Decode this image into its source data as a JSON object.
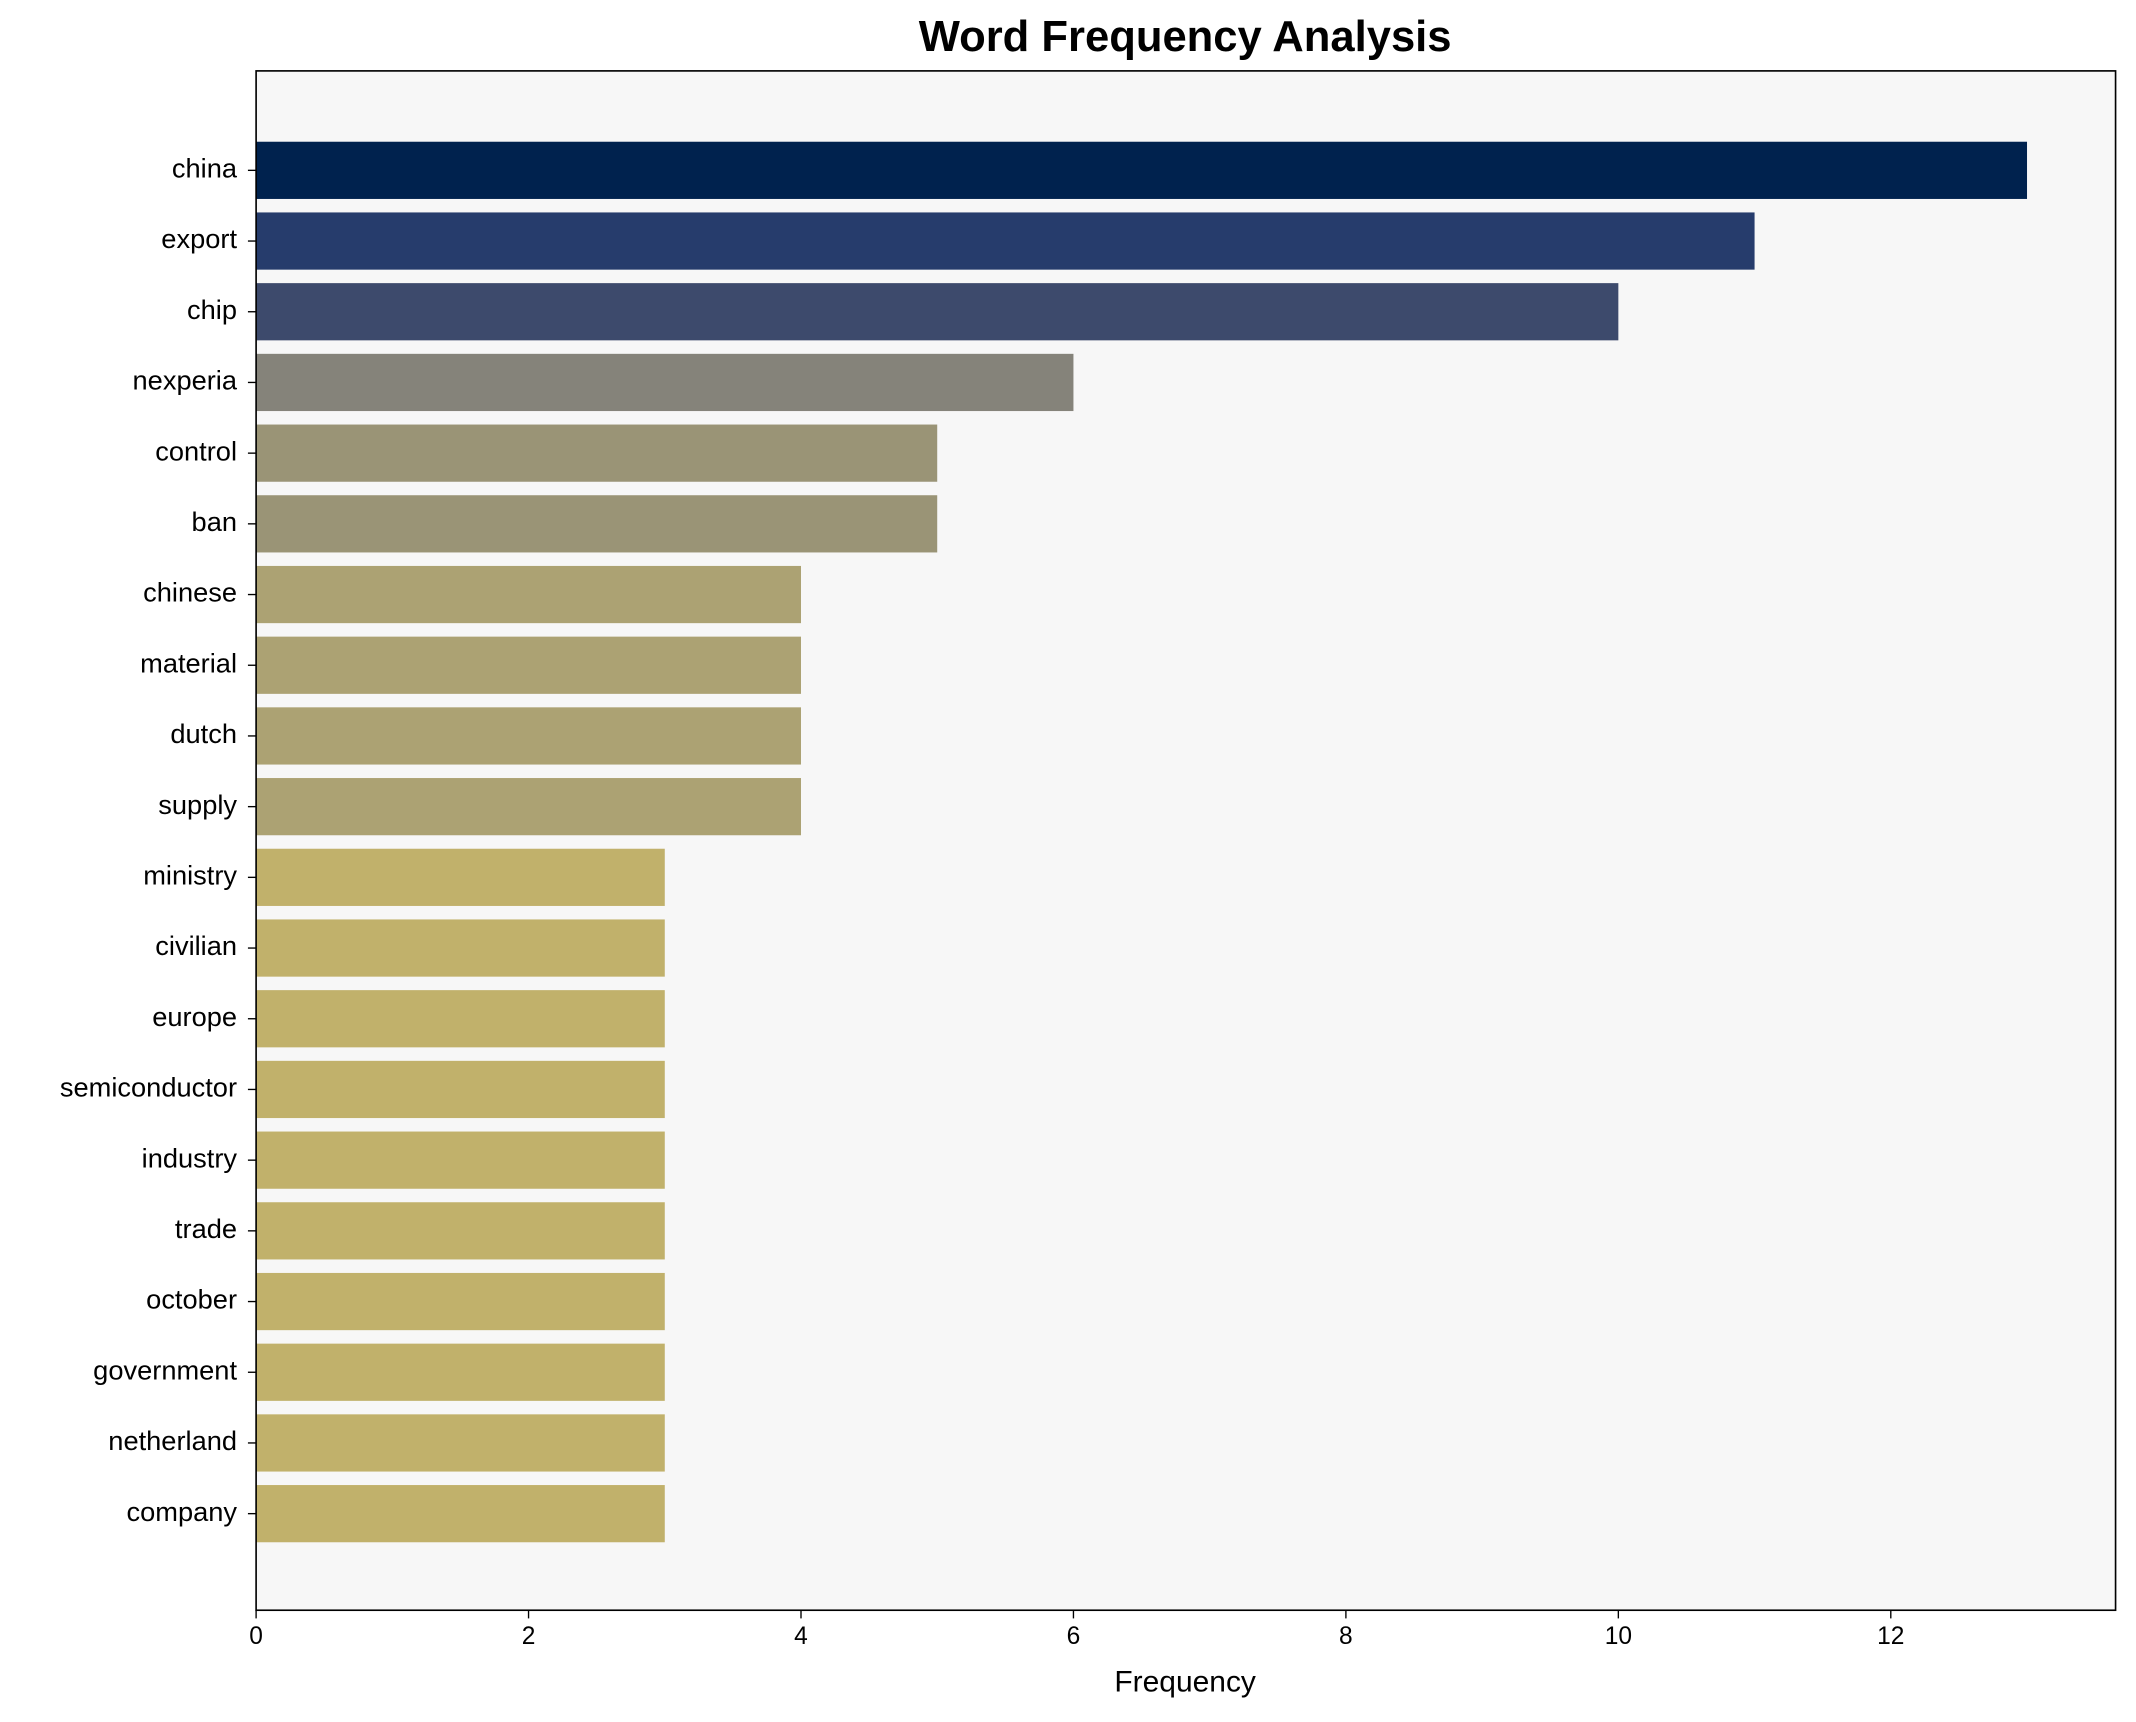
{
  "chart_data": {
    "type": "barh",
    "title": "Word Frequency Analysis",
    "x_label": "Frequency",
    "categories": [
      "china",
      "export",
      "chip",
      "nexperia",
      "control",
      "ban",
      "chinese",
      "material",
      "dutch",
      "supply",
      "ministry",
      "civilian",
      "europe",
      "semiconductor",
      "industry",
      "trade",
      "october",
      "government",
      "netherland",
      "company"
    ],
    "values": [
      13,
      11,
      10,
      6,
      5,
      5,
      4,
      4,
      4,
      4,
      3,
      3,
      3,
      3,
      3,
      3,
      3,
      3,
      3,
      3
    ],
    "colors": [
      "#00224e",
      "#263c6c",
      "#3d4a6c",
      "#85837a",
      "#9a9476",
      "#9a9476",
      "#aca273",
      "#aca273",
      "#aca273",
      "#aca273",
      "#c1b16b",
      "#c1b16b",
      "#c1b16b",
      "#c1b16b",
      "#c1b16b",
      "#c1b16b",
      "#c1b16b",
      "#c1b16b",
      "#c1b16b",
      "#c1b16b"
    ],
    "xlim": [
      0,
      13.65
    ],
    "xticks": [
      0,
      2,
      4,
      6,
      8,
      10,
      12
    ],
    "grid": false
  }
}
